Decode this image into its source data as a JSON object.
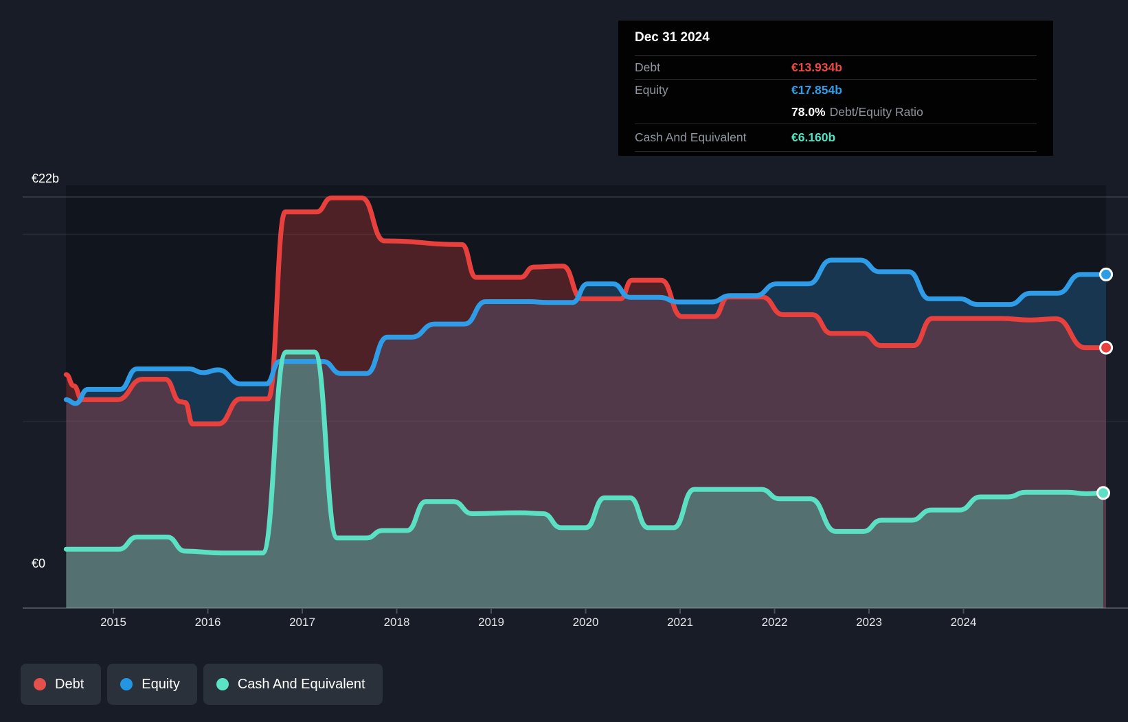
{
  "y_axis": {
    "top_label": "€22b",
    "zero_label": "€0"
  },
  "tooltip": {
    "title": "Dec 31 2024",
    "debt_label": "Debt",
    "debt_value": "€13.934b",
    "equity_label": "Equity",
    "equity_value": "€17.854b",
    "ratio_value": "78.0%",
    "ratio_label": "Debt/Equity Ratio",
    "cash_label": "Cash And Equivalent",
    "cash_value": "€6.160b"
  },
  "legend": [
    {
      "label": "Debt",
      "color": "#e5504c"
    },
    {
      "label": "Equity",
      "color": "#2296e3"
    },
    {
      "label": "Cash And Equivalent",
      "color": "#5be3c6"
    }
  ],
  "colors": {
    "background": "#171c26",
    "debt_line": "#e8413d",
    "equity_line": "#2f9ce8",
    "cash_line": "#5ce0c3",
    "axis": "#4a5058",
    "tooltip_bg": "#020203"
  },
  "chart_data": {
    "type": "area",
    "title": "Debt to Equity history",
    "x_unit": "decimal_year",
    "x_ticks": [
      "2015",
      "2016",
      "2017",
      "2018",
      "2019",
      "2020",
      "2021",
      "2022",
      "2023",
      "2024"
    ],
    "x_range": [
      2014.5,
      2025.51
    ],
    "ylim": [
      0,
      22
    ],
    "y_top_label_value": 22,
    "gridlines": [
      {
        "value": 22,
        "strong": true
      },
      {
        "value": 20,
        "strong": false
      },
      {
        "value": 10,
        "strong": false
      }
    ],
    "legend_position": "bottom-left",
    "series": [
      {
        "name": "Debt",
        "color": "#e8413d",
        "fill": "rgba(232,65,61,0.28)",
        "points": [
          [
            2014.5,
            12.5
          ],
          [
            2014.58,
            11.9
          ],
          [
            2014.67,
            11.15
          ],
          [
            2015.04,
            11.15
          ],
          [
            2015.31,
            12.25
          ],
          [
            2015.55,
            12.25
          ],
          [
            2015.71,
            11.05
          ],
          [
            2015.76,
            11.0
          ],
          [
            2015.84,
            9.85
          ],
          [
            2016.11,
            9.85
          ],
          [
            2016.35,
            11.2
          ],
          [
            2016.64,
            11.2
          ],
          [
            2016.82,
            21.2
          ],
          [
            2017.15,
            21.2
          ],
          [
            2017.31,
            21.95
          ],
          [
            2017.63,
            21.95
          ],
          [
            2017.87,
            19.65
          ],
          [
            2018.69,
            19.45
          ],
          [
            2018.84,
            17.7
          ],
          [
            2019.31,
            17.7
          ],
          [
            2019.45,
            18.25
          ],
          [
            2019.76,
            18.3
          ],
          [
            2019.96,
            16.55
          ],
          [
            2020.37,
            16.55
          ],
          [
            2020.49,
            17.55
          ],
          [
            2020.8,
            17.55
          ],
          [
            2021.02,
            15.6
          ],
          [
            2021.36,
            15.6
          ],
          [
            2021.51,
            16.65
          ],
          [
            2021.87,
            16.65
          ],
          [
            2022.09,
            15.7
          ],
          [
            2022.4,
            15.7
          ],
          [
            2022.6,
            14.7
          ],
          [
            2022.94,
            14.7
          ],
          [
            2023.13,
            14.05
          ],
          [
            2023.47,
            14.05
          ],
          [
            2023.67,
            15.5
          ],
          [
            2024.4,
            15.5
          ],
          [
            2024.7,
            15.42
          ],
          [
            2024.98,
            15.48
          ],
          [
            2025.29,
            13.934
          ],
          [
            2025.51,
            13.934
          ]
        ]
      },
      {
        "name": "Equity",
        "color": "#2f9ce8",
        "fill": "rgba(47,156,232,0.25)",
        "points": [
          [
            2014.5,
            11.15
          ],
          [
            2014.6,
            10.95
          ],
          [
            2014.73,
            11.7
          ],
          [
            2015.07,
            11.7
          ],
          [
            2015.25,
            12.8
          ],
          [
            2015.8,
            12.8
          ],
          [
            2015.95,
            12.6
          ],
          [
            2016.11,
            12.75
          ],
          [
            2016.35,
            12.0
          ],
          [
            2016.62,
            12.0
          ],
          [
            2016.76,
            13.2
          ],
          [
            2017.22,
            13.2
          ],
          [
            2017.41,
            12.55
          ],
          [
            2017.68,
            12.55
          ],
          [
            2017.9,
            14.5
          ],
          [
            2018.16,
            14.5
          ],
          [
            2018.4,
            15.2
          ],
          [
            2018.72,
            15.2
          ],
          [
            2018.94,
            16.4
          ],
          [
            2019.4,
            16.4
          ],
          [
            2019.6,
            16.35
          ],
          [
            2019.86,
            16.35
          ],
          [
            2020.02,
            17.35
          ],
          [
            2020.29,
            17.35
          ],
          [
            2020.47,
            16.63
          ],
          [
            2020.78,
            16.63
          ],
          [
            2020.98,
            16.38
          ],
          [
            2021.33,
            16.38
          ],
          [
            2021.53,
            16.72
          ],
          [
            2021.8,
            16.72
          ],
          [
            2022.02,
            17.35
          ],
          [
            2022.36,
            17.35
          ],
          [
            2022.6,
            18.62
          ],
          [
            2022.91,
            18.62
          ],
          [
            2023.11,
            18.0
          ],
          [
            2023.42,
            18.0
          ],
          [
            2023.64,
            16.55
          ],
          [
            2023.96,
            16.55
          ],
          [
            2024.15,
            16.25
          ],
          [
            2024.49,
            16.25
          ],
          [
            2024.71,
            16.85
          ],
          [
            2025.0,
            16.85
          ],
          [
            2025.24,
            17.854
          ],
          [
            2025.51,
            17.854
          ]
        ]
      },
      {
        "name": "Cash And Equivalent",
        "color": "#5ce0c3",
        "fill": "rgba(92,224,195,0.33)",
        "points": [
          [
            2014.5,
            3.15
          ],
          [
            2015.06,
            3.15
          ],
          [
            2015.25,
            3.8
          ],
          [
            2015.57,
            3.8
          ],
          [
            2015.76,
            3.05
          ],
          [
            2016.15,
            2.95
          ],
          [
            2016.58,
            2.95
          ],
          [
            2016.83,
            13.7
          ],
          [
            2017.13,
            13.7
          ],
          [
            2017.37,
            3.75
          ],
          [
            2017.68,
            3.75
          ],
          [
            2017.85,
            4.15
          ],
          [
            2018.11,
            4.15
          ],
          [
            2018.31,
            5.7
          ],
          [
            2018.6,
            5.7
          ],
          [
            2018.8,
            5.05
          ],
          [
            2019.3,
            5.1
          ],
          [
            2019.55,
            5.05
          ],
          [
            2019.74,
            4.3
          ],
          [
            2020.0,
            4.3
          ],
          [
            2020.2,
            5.9
          ],
          [
            2020.47,
            5.9
          ],
          [
            2020.66,
            4.3
          ],
          [
            2020.93,
            4.3
          ],
          [
            2021.15,
            6.35
          ],
          [
            2021.86,
            6.35
          ],
          [
            2022.05,
            5.85
          ],
          [
            2022.38,
            5.85
          ],
          [
            2022.65,
            4.1
          ],
          [
            2022.94,
            4.1
          ],
          [
            2023.13,
            4.7
          ],
          [
            2023.45,
            4.7
          ],
          [
            2023.66,
            5.25
          ],
          [
            2023.96,
            5.25
          ],
          [
            2024.18,
            5.95
          ],
          [
            2024.47,
            5.95
          ],
          [
            2024.66,
            6.2
          ],
          [
            2025.1,
            6.2
          ],
          [
            2025.3,
            6.12
          ],
          [
            2025.48,
            6.16
          ]
        ]
      }
    ]
  }
}
